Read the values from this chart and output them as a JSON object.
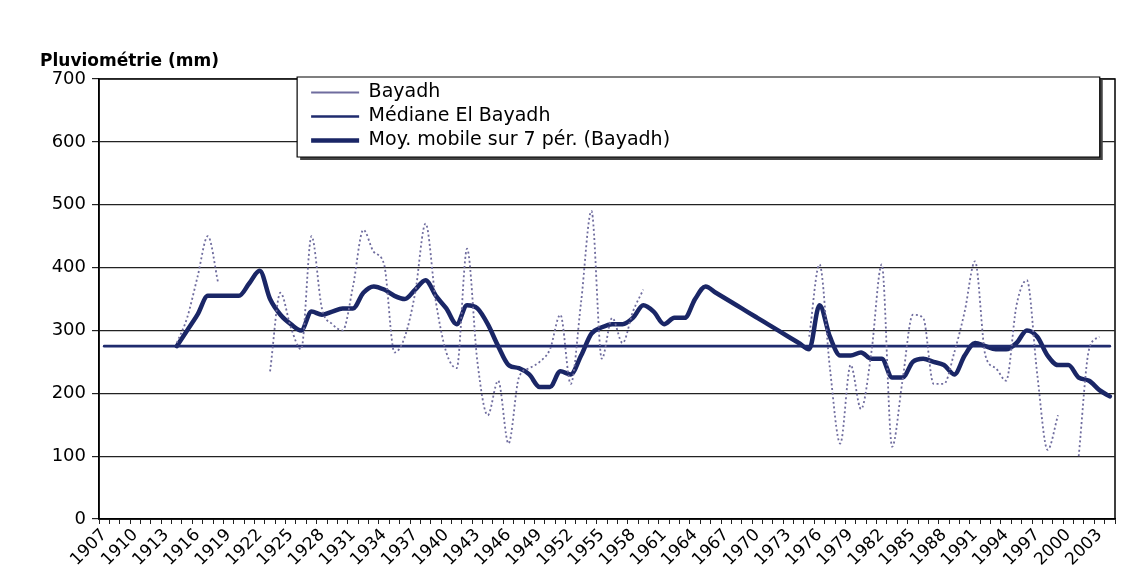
{
  "chart_data": {
    "type": "line",
    "ylabel": "Pluviométrie (mm)",
    "categories": [
      "1907",
      null,
      null,
      "1910",
      null,
      null,
      "1913",
      null,
      null,
      "1916",
      null,
      null,
      "1919",
      null,
      null,
      "1922",
      null,
      null,
      "1925",
      null,
      null,
      "1928",
      null,
      null,
      "1931",
      null,
      null,
      "1934",
      null,
      null,
      "1937",
      null,
      null,
      "1940",
      null,
      null,
      "1943",
      null,
      null,
      "1946",
      null,
      null,
      "1949",
      null,
      null,
      "1952",
      null,
      null,
      "1955",
      null,
      null,
      "1958",
      null,
      null,
      "1961",
      null,
      null,
      "1964",
      null,
      null,
      "1967",
      null,
      null,
      "1970",
      null,
      null,
      "1973",
      null,
      null,
      "1976",
      null,
      null,
      "1979",
      null,
      null,
      "1982",
      null,
      null,
      "1985",
      null,
      null,
      "1988",
      null,
      null,
      "1991",
      null,
      null,
      "1994",
      null,
      null,
      "1997",
      null,
      null,
      "2000",
      null,
      null,
      "2003",
      null
    ],
    "series": [
      {
        "name": "Bayadh",
        "color": "#6f6c9e",
        "line_style": "dotted",
        "values": [
          null,
          null,
          null,
          null,
          null,
          null,
          null,
          280,
          320,
          385,
          450,
          375,
          null,
          null,
          null,
          null,
          235,
          360,
          305,
          270,
          450,
          335,
          310,
          300,
          370,
          460,
          425,
          405,
          265,
          290,
          360,
          470,
          345,
          265,
          240,
          430,
          250,
          165,
          220,
          120,
          225,
          240,
          250,
          270,
          325,
          215,
          345,
          490,
          255,
          320,
          280,
          330,
          365,
          null,
          null,
          null,
          null,
          null,
          null,
          null,
          null,
          null,
          null,
          null,
          null,
          null,
          null,
          null,
          290,
          405,
          240,
          120,
          245,
          175,
          265,
          405,
          115,
          220,
          325,
          320,
          215,
          215,
          265,
          330,
          410,
          260,
          240,
          220,
          340,
          380,
          230,
          110,
          165,
          null,
          100,
          270,
          290,
          null
        ]
      },
      {
        "name": "Médiane El Bayadh",
        "color": "#1f2b6e",
        "values": [
          275,
          275,
          275,
          275,
          275,
          275,
          275,
          275,
          275,
          275,
          275,
          275,
          275,
          275,
          275,
          275,
          275,
          275,
          275,
          275,
          275,
          275,
          275,
          275,
          275,
          275,
          275,
          275,
          275,
          275,
          275,
          275,
          275,
          275,
          275,
          275,
          275,
          275,
          275,
          275,
          275,
          275,
          275,
          275,
          275,
          275,
          275,
          275,
          275,
          275,
          275,
          275,
          275,
          275,
          275,
          275,
          275,
          275,
          275,
          275,
          275,
          275,
          275,
          275,
          275,
          275,
          275,
          275,
          275,
          275,
          275,
          275,
          275,
          275,
          275,
          275,
          275,
          275,
          275,
          275,
          275,
          275,
          275,
          275,
          275,
          275,
          275,
          275,
          275,
          275,
          275,
          275,
          275,
          275,
          275,
          275,
          275,
          275
        ]
      },
      {
        "name": "Moy. mobile sur 7 pér. (Bayadh)",
        "color": "#1a2666",
        "values": [
          null,
          null,
          null,
          null,
          null,
          null,
          null,
          275,
          300,
          325,
          355,
          355,
          355,
          355,
          375,
          395,
          350,
          325,
          310,
          300,
          330,
          325,
          330,
          335,
          335,
          360,
          370,
          365,
          355,
          350,
          365,
          380,
          355,
          335,
          310,
          340,
          335,
          310,
          275,
          245,
          240,
          230,
          210,
          210,
          235,
          230,
          260,
          295,
          305,
          310,
          310,
          320,
          340,
          330,
          310,
          320,
          320,
          350,
          370,
          360,
          350,
          340,
          330,
          320,
          310,
          300,
          290,
          280,
          270,
          340,
          290,
          260,
          260,
          265,
          255,
          255,
          225,
          225,
          250,
          255,
          250,
          245,
          230,
          260,
          280,
          275,
          270,
          270,
          280,
          300,
          290,
          260,
          245,
          245,
          225,
          220,
          205,
          195
        ]
      }
    ],
    "ylim": [
      0,
      700
    ],
    "yticks": [
      0,
      100,
      200,
      300,
      400,
      500,
      600,
      700
    ],
    "grid": "y",
    "legend": "top",
    "marker": "none",
    "line_style": "solid"
  }
}
